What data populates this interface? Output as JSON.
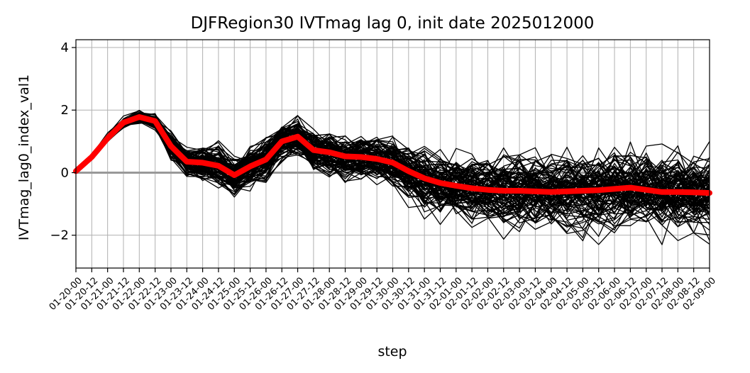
{
  "chart_data": {
    "type": "line",
    "title": "DJFRegion30 IVTmag lag 0, init date 2025012000",
    "xlabel": "step",
    "ylabel": "IVTmag_lag0_index_val1",
    "categories": [
      "01-20-00",
      "01-20-12",
      "01-21-00",
      "01-21-12",
      "01-22-00",
      "01-22-12",
      "01-23-00",
      "01-23-12",
      "01-24-00",
      "01-24-12",
      "01-25-00",
      "01-25-12",
      "01-26-00",
      "01-26-12",
      "01-27-00",
      "01-27-12",
      "01-28-00",
      "01-28-12",
      "01-29-00",
      "01-29-12",
      "01-30-00",
      "01-30-12",
      "01-31-00",
      "01-31-12",
      "02-01-00",
      "02-01-12",
      "02-02-00",
      "02-02-12",
      "02-03-00",
      "02-03-12",
      "02-04-00",
      "02-04-12",
      "02-05-00",
      "02-05-12",
      "02-06-00",
      "02-06-12",
      "02-07-00",
      "02-07-12",
      "02-08-00",
      "02-08-12",
      "02-09-00"
    ],
    "ylim": [
      -3.05,
      4.25
    ],
    "yticks": [
      -2,
      0,
      2,
      4
    ],
    "ytick_labels": [
      "−2",
      "0",
      "2",
      "4"
    ],
    "grid": true,
    "zero_line": {
      "value": 0,
      "color": "#999999"
    },
    "ensemble": {
      "color": "#000000",
      "member_count": 100,
      "series": []
    },
    "mean_series": {
      "color": "#ff0000",
      "values": [
        0.05,
        0.5,
        1.1,
        1.6,
        1.78,
        1.65,
        0.85,
        0.35,
        0.32,
        0.22,
        -0.08,
        0.2,
        0.42,
        1.0,
        1.15,
        0.72,
        0.65,
        0.52,
        0.5,
        0.44,
        0.32,
        0.05,
        -0.18,
        -0.33,
        -0.42,
        -0.5,
        -0.55,
        -0.58,
        -0.58,
        -0.6,
        -0.62,
        -0.6,
        -0.58,
        -0.56,
        -0.52,
        -0.48,
        -0.55,
        -0.62,
        -0.62,
        -0.63,
        -0.65
      ]
    }
  }
}
